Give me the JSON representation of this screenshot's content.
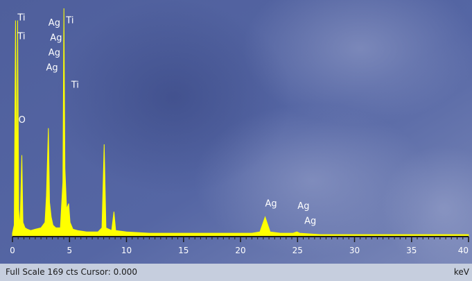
{
  "chart_data": {
    "type": "line",
    "xlim": [
      0,
      40
    ],
    "x_ticks": [
      0,
      5,
      10,
      15,
      20,
      25,
      30,
      35,
      40
    ],
    "xlabel": "keV",
    "full_scale_cts": 169,
    "status_text": "Full Scale 169 cts Cursor: 0.000",
    "series_color": "#ffff00",
    "background_colors": [
      "#4d5fa0",
      "#8c98c4"
    ],
    "spectrum": {
      "name": "",
      "points": [
        [
          0.0,
          2
        ],
        [
          0.15,
          8
        ],
        [
          0.27,
          160
        ],
        [
          0.38,
          30
        ],
        [
          0.45,
          160
        ],
        [
          0.55,
          20
        ],
        [
          0.62,
          6
        ],
        [
          0.7,
          20
        ],
        [
          0.82,
          60
        ],
        [
          0.92,
          10
        ],
        [
          1.1,
          6
        ],
        [
          1.3,
          5
        ],
        [
          1.6,
          4
        ],
        [
          2.0,
          5
        ],
        [
          2.5,
          6
        ],
        [
          2.85,
          10
        ],
        [
          2.98,
          30
        ],
        [
          3.15,
          80
        ],
        [
          3.25,
          25
        ],
        [
          3.4,
          14
        ],
        [
          3.55,
          8
        ],
        [
          3.8,
          6
        ],
        [
          4.2,
          6
        ],
        [
          4.42,
          40
        ],
        [
          4.51,
          169
        ],
        [
          4.6,
          50
        ],
        [
          4.75,
          20
        ],
        [
          4.93,
          24
        ],
        [
          5.05,
          10
        ],
        [
          5.3,
          5
        ],
        [
          5.7,
          4
        ],
        [
          6.5,
          3
        ],
        [
          7.5,
          3
        ],
        [
          7.85,
          6
        ],
        [
          8.04,
          68
        ],
        [
          8.2,
          6
        ],
        [
          8.7,
          4
        ],
        [
          8.9,
          18
        ],
        [
          9.05,
          4
        ],
        [
          10.0,
          3
        ],
        [
          12.0,
          2
        ],
        [
          15.0,
          2
        ],
        [
          18.0,
          2
        ],
        [
          21.0,
          2
        ],
        [
          21.7,
          3
        ],
        [
          22.16,
          14
        ],
        [
          22.6,
          3
        ],
        [
          23.5,
          2
        ],
        [
          24.6,
          2
        ],
        [
          24.94,
          3
        ],
        [
          25.2,
          2
        ],
        [
          27.0,
          1
        ],
        [
          30.0,
          1
        ],
        [
          35.0,
          1
        ],
        [
          40.0,
          1
        ]
      ]
    },
    "peak_labels": [
      {
        "text": "Ti",
        "x": 0.45,
        "y": 160
      },
      {
        "text": "Ti",
        "x": 0.45,
        "y": 146
      },
      {
        "text": "O",
        "x": 0.52,
        "y": 84
      },
      {
        "text": "Ag",
        "x": 3.15,
        "y": 156
      },
      {
        "text": "Ag",
        "x": 3.3,
        "y": 145
      },
      {
        "text": "Ag",
        "x": 3.15,
        "y": 134
      },
      {
        "text": "Ag",
        "x": 2.95,
        "y": 123
      },
      {
        "text": "Ti",
        "x": 4.7,
        "y": 158
      },
      {
        "text": "Ti",
        "x": 5.15,
        "y": 110
      },
      {
        "text": "Ag",
        "x": 22.16,
        "y": 22
      },
      {
        "text": "Ag",
        "x": 25.0,
        "y": 20
      },
      {
        "text": "Ag",
        "x": 25.6,
        "y": 9
      }
    ]
  }
}
